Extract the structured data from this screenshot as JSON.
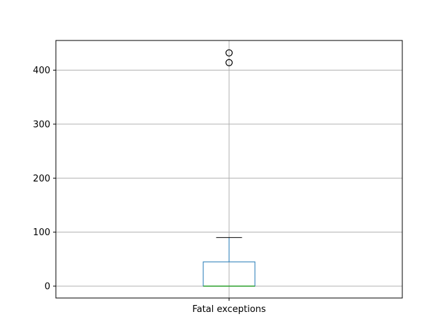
{
  "chart_data": {
    "type": "box",
    "title": "",
    "xlabel": "",
    "ylabel": "",
    "categories": [
      "Fatal exceptions"
    ],
    "ylim": [
      -22,
      455
    ],
    "yticks": [
      0,
      100,
      200,
      300,
      400
    ],
    "grid": true,
    "boxes": [
      {
        "name": "Fatal exceptions",
        "whisker_low": 0,
        "q1": 0,
        "median": 0,
        "q3": 45,
        "whisker_high": 90,
        "outliers": [
          414,
          432
        ]
      }
    ],
    "colors": {
      "box": "#1f77b4",
      "median": "#2ca02c",
      "cap": "#000000",
      "grid": "#b0b0b0",
      "outlier_edge": "#000000"
    }
  }
}
